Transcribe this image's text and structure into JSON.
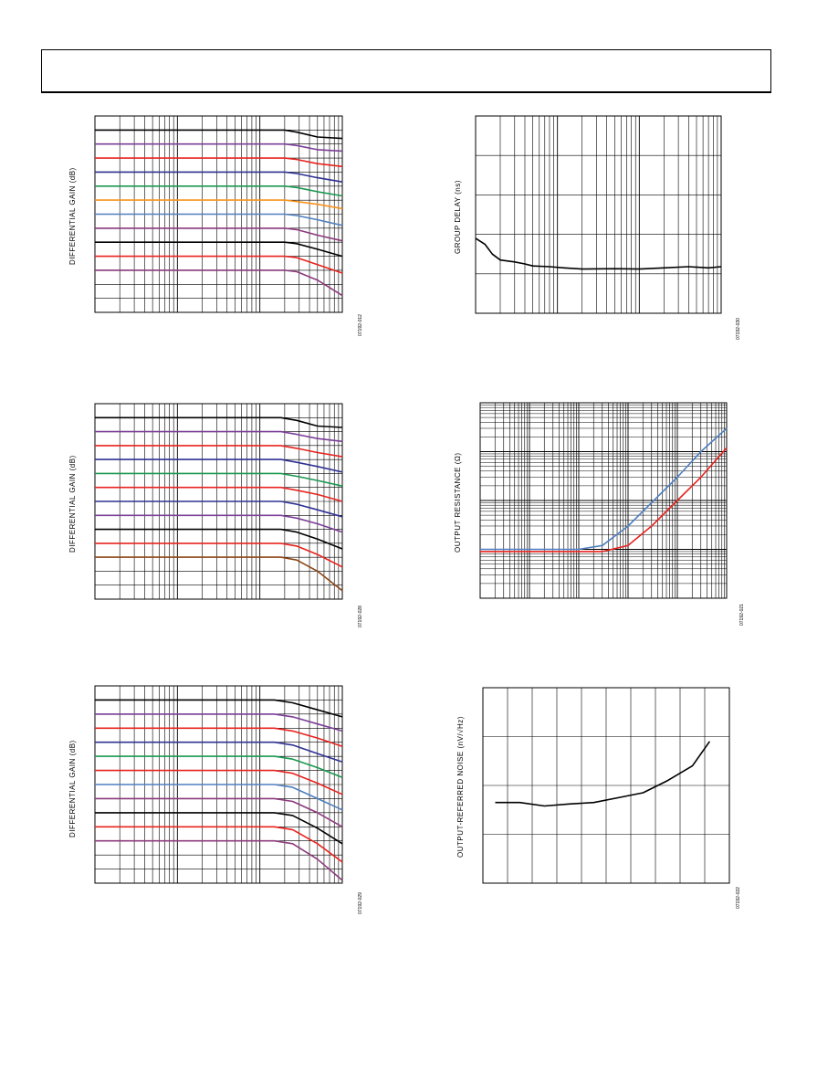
{
  "chart_data": [
    {
      "id": "dg1",
      "type": "line",
      "title": "",
      "xlabel": "",
      "ylabel": "DIFFERENTIAL GAIN (dB)",
      "fig_id": "07192-012",
      "xscale": "log",
      "xlim": [
        1,
        1000
      ],
      "ylim": [
        -1,
        13
      ],
      "grid": true,
      "series": [
        {
          "color": "#000000",
          "values": [
            [
              1,
              12
            ],
            [
              200,
              12
            ],
            [
              280,
              11.85
            ],
            [
              500,
              11.5
            ],
            [
              1000,
              11.4
            ]
          ]
        },
        {
          "color": "#7b3f98",
          "values": [
            [
              1,
              11
            ],
            [
              200,
              11
            ],
            [
              280,
              10.9
            ],
            [
              500,
              10.6
            ],
            [
              1000,
              10.5
            ]
          ]
        },
        {
          "color": "#e8231e",
          "values": [
            [
              1,
              10
            ],
            [
              200,
              10
            ],
            [
              280,
              9.9
            ],
            [
              500,
              9.6
            ],
            [
              1000,
              9.4
            ]
          ]
        },
        {
          "color": "#2e3192",
          "values": [
            [
              1,
              9
            ],
            [
              200,
              9
            ],
            [
              280,
              8.9
            ],
            [
              500,
              8.6
            ],
            [
              1000,
              8.3
            ]
          ]
        },
        {
          "color": "#1a9850",
          "values": [
            [
              1,
              8
            ],
            [
              200,
              8
            ],
            [
              280,
              7.9
            ],
            [
              500,
              7.6
            ],
            [
              1000,
              7.3
            ]
          ]
        },
        {
          "color": "#f7941d",
          "values": [
            [
              1,
              7
            ],
            [
              200,
              7
            ],
            [
              280,
              6.9
            ],
            [
              500,
              6.7
            ],
            [
              1000,
              6.4
            ]
          ]
        },
        {
          "color": "#4f7fbf",
          "values": [
            [
              1,
              6
            ],
            [
              200,
              6
            ],
            [
              280,
              5.9
            ],
            [
              500,
              5.6
            ],
            [
              1000,
              5.2
            ]
          ]
        },
        {
          "color": "#8c3a7c",
          "values": [
            [
              1,
              5
            ],
            [
              200,
              5
            ],
            [
              280,
              4.9
            ],
            [
              500,
              4.5
            ],
            [
              1000,
              4.1
            ]
          ]
        },
        {
          "color": "#000000",
          "values": [
            [
              1,
              4
            ],
            [
              200,
              4
            ],
            [
              280,
              3.9
            ],
            [
              500,
              3.5
            ],
            [
              1000,
              3.0
            ]
          ]
        },
        {
          "color": "#e8231e",
          "values": [
            [
              1,
              3
            ],
            [
              200,
              3
            ],
            [
              280,
              2.9
            ],
            [
              500,
              2.4
            ],
            [
              1000,
              1.8
            ]
          ]
        },
        {
          "color": "#8c3a7c",
          "values": [
            [
              1,
              2
            ],
            [
              200,
              2
            ],
            [
              280,
              1.9
            ],
            [
              500,
              1.3
            ],
            [
              1000,
              0.2
            ]
          ]
        }
      ]
    },
    {
      "id": "dg2",
      "type": "line",
      "title": "",
      "xlabel": "",
      "ylabel": "DIFFERENTIAL GAIN (dB)",
      "fig_id": "07192-028",
      "xscale": "log",
      "xlim": [
        1,
        1000
      ],
      "ylim": [
        -1,
        13
      ],
      "grid": true,
      "series": [
        {
          "color": "#000000",
          "values": [
            [
              1,
              12
            ],
            [
              180,
              12
            ],
            [
              280,
              11.8
            ],
            [
              500,
              11.4
            ],
            [
              1000,
              11.3
            ]
          ]
        },
        {
          "color": "#7b3f98",
          "values": [
            [
              1,
              11
            ],
            [
              180,
              11
            ],
            [
              280,
              10.8
            ],
            [
              500,
              10.5
            ],
            [
              1000,
              10.3
            ]
          ]
        },
        {
          "color": "#e8231e",
          "values": [
            [
              1,
              10
            ],
            [
              180,
              10
            ],
            [
              280,
              9.8
            ],
            [
              500,
              9.5
            ],
            [
              1000,
              9.2
            ]
          ]
        },
        {
          "color": "#2e3192",
          "values": [
            [
              1,
              9
            ],
            [
              180,
              9
            ],
            [
              280,
              8.8
            ],
            [
              500,
              8.5
            ],
            [
              1000,
              8.1
            ]
          ]
        },
        {
          "color": "#1a9850",
          "values": [
            [
              1,
              8
            ],
            [
              180,
              8
            ],
            [
              280,
              7.8
            ],
            [
              500,
              7.5
            ],
            [
              1000,
              7.1
            ]
          ]
        },
        {
          "color": "#e8231e",
          "values": [
            [
              1,
              7
            ],
            [
              180,
              7
            ],
            [
              280,
              6.8
            ],
            [
              500,
              6.5
            ],
            [
              1000,
              6.0
            ]
          ]
        },
        {
          "color": "#2e3192",
          "values": [
            [
              1,
              6
            ],
            [
              180,
              6
            ],
            [
              280,
              5.8
            ],
            [
              500,
              5.4
            ],
            [
              1000,
              4.9
            ]
          ]
        },
        {
          "color": "#7b3f98",
          "values": [
            [
              1,
              5
            ],
            [
              180,
              5
            ],
            [
              280,
              4.8
            ],
            [
              500,
              4.4
            ],
            [
              1000,
              3.8
            ]
          ]
        },
        {
          "color": "#000000",
          "values": [
            [
              1,
              4
            ],
            [
              180,
              4
            ],
            [
              280,
              3.8
            ],
            [
              500,
              3.3
            ],
            [
              1000,
              2.6
            ]
          ]
        },
        {
          "color": "#e8231e",
          "values": [
            [
              1,
              3
            ],
            [
              180,
              3
            ],
            [
              280,
              2.8
            ],
            [
              500,
              2.2
            ],
            [
              1000,
              1.3
            ]
          ]
        },
        {
          "color": "#8b4513",
          "values": [
            [
              1,
              2
            ],
            [
              180,
              2
            ],
            [
              280,
              1.8
            ],
            [
              500,
              1.0
            ],
            [
              1000,
              -0.4
            ]
          ]
        }
      ]
    },
    {
      "id": "dg3",
      "type": "line",
      "title": "",
      "xlabel": "",
      "ylabel": "DIFFERENTIAL GAIN (dB)",
      "fig_id": "07192-029",
      "xscale": "log",
      "xlim": [
        1,
        1000
      ],
      "ylim": [
        -1,
        13
      ],
      "grid": true,
      "series": [
        {
          "color": "#000000",
          "values": [
            [
              1,
              12
            ],
            [
              150,
              12
            ],
            [
              250,
              11.8
            ],
            [
              500,
              11.3
            ],
            [
              1000,
              10.8
            ]
          ]
        },
        {
          "color": "#7b3f98",
          "values": [
            [
              1,
              11
            ],
            [
              150,
              11
            ],
            [
              250,
              10.8
            ],
            [
              500,
              10.3
            ],
            [
              1000,
              9.8
            ]
          ]
        },
        {
          "color": "#e8231e",
          "values": [
            [
              1,
              10
            ],
            [
              150,
              10
            ],
            [
              250,
              9.8
            ],
            [
              500,
              9.3
            ],
            [
              1000,
              8.7
            ]
          ]
        },
        {
          "color": "#2e3192",
          "values": [
            [
              1,
              9
            ],
            [
              150,
              9
            ],
            [
              250,
              8.8
            ],
            [
              500,
              8.2
            ],
            [
              1000,
              7.6
            ]
          ]
        },
        {
          "color": "#1a9850",
          "values": [
            [
              1,
              8
            ],
            [
              150,
              8
            ],
            [
              250,
              7.8
            ],
            [
              500,
              7.2
            ],
            [
              1000,
              6.5
            ]
          ]
        },
        {
          "color": "#e8231e",
          "values": [
            [
              1,
              7
            ],
            [
              150,
              7
            ],
            [
              250,
              6.8
            ],
            [
              500,
              6.1
            ],
            [
              1000,
              5.3
            ]
          ]
        },
        {
          "color": "#4f7fbf",
          "values": [
            [
              1,
              6
            ],
            [
              150,
              6
            ],
            [
              250,
              5.8
            ],
            [
              500,
              5.0
            ],
            [
              1000,
              4.2
            ]
          ]
        },
        {
          "color": "#8c3a7c",
          "values": [
            [
              1,
              5
            ],
            [
              150,
              5
            ],
            [
              250,
              4.8
            ],
            [
              500,
              4.0
            ],
            [
              1000,
              3.0
            ]
          ]
        },
        {
          "color": "#000000",
          "values": [
            [
              1,
              4
            ],
            [
              150,
              4
            ],
            [
              250,
              3.8
            ],
            [
              500,
              2.9
            ],
            [
              1000,
              1.8
            ]
          ]
        },
        {
          "color": "#e8231e",
          "values": [
            [
              1,
              3
            ],
            [
              150,
              3
            ],
            [
              250,
              2.8
            ],
            [
              500,
              1.8
            ],
            [
              1000,
              0.5
            ]
          ]
        },
        {
          "color": "#8c3a7c",
          "values": [
            [
              1,
              2
            ],
            [
              150,
              2
            ],
            [
              250,
              1.8
            ],
            [
              500,
              0.7
            ],
            [
              1000,
              -0.8
            ]
          ]
        }
      ]
    },
    {
      "id": "gd",
      "type": "line",
      "title": "",
      "xlabel": "",
      "ylabel": "GROUP DELAY (ns)",
      "fig_id": "07192-030",
      "xscale": "log",
      "xlim": [
        1,
        1000
      ],
      "ylim": [
        0,
        5
      ],
      "grid": true,
      "series": [
        {
          "color": "#000000",
          "values": [
            [
              1,
              1.9
            ],
            [
              1.3,
              1.75
            ],
            [
              1.6,
              1.5
            ],
            [
              2,
              1.35
            ],
            [
              3,
              1.3
            ],
            [
              4,
              1.25
            ],
            [
              5,
              1.2
            ],
            [
              8,
              1.18
            ],
            [
              12,
              1.15
            ],
            [
              20,
              1.12
            ],
            [
              50,
              1.13
            ],
            [
              100,
              1.12
            ],
            [
              200,
              1.15
            ],
            [
              400,
              1.18
            ],
            [
              700,
              1.15
            ],
            [
              1000,
              1.18
            ]
          ]
        }
      ]
    },
    {
      "id": "or",
      "type": "line",
      "title": "",
      "xlabel": "",
      "ylabel": "OUTPUT RESISTANCE (Ω)",
      "fig_id": "07192-021",
      "xscale": "log",
      "yscale": "log",
      "xlim": [
        0.01,
        1000
      ],
      "ylim": [
        0.01,
        100
      ],
      "grid": true,
      "series": [
        {
          "color": "#4f7fbf",
          "values": [
            [
              0.01,
              0.1
            ],
            [
              1,
              0.1
            ],
            [
              3,
              0.12
            ],
            [
              10,
              0.3
            ],
            [
              30,
              0.9
            ],
            [
              100,
              3
            ],
            [
              300,
              10
            ],
            [
              1000,
              30
            ]
          ]
        },
        {
          "color": "#e8231e",
          "values": [
            [
              0.01,
              0.09
            ],
            [
              3,
              0.09
            ],
            [
              10,
              0.12
            ],
            [
              30,
              0.3
            ],
            [
              100,
              1
            ],
            [
              300,
              3
            ],
            [
              1000,
              12
            ]
          ]
        }
      ]
    },
    {
      "id": "orn",
      "type": "line",
      "title": "",
      "xlabel": "",
      "ylabel": "OUTPUT-REFERRED NOISE (nV/√Hz)",
      "fig_id": "07192-022",
      "xscale": "linear",
      "xlim": [
        0,
        10
      ],
      "ylim": [
        0,
        4
      ],
      "grid": true,
      "series": [
        {
          "color": "#000000",
          "values": [
            [
              0.5,
              1.65
            ],
            [
              1.5,
              1.65
            ],
            [
              2.5,
              1.58
            ],
            [
              3.5,
              1.62
            ],
            [
              4.5,
              1.65
            ],
            [
              5.5,
              1.75
            ],
            [
              6.5,
              1.85
            ],
            [
              7.5,
              2.1
            ],
            [
              8.5,
              2.4
            ],
            [
              9.2,
              2.9
            ]
          ]
        }
      ]
    }
  ]
}
